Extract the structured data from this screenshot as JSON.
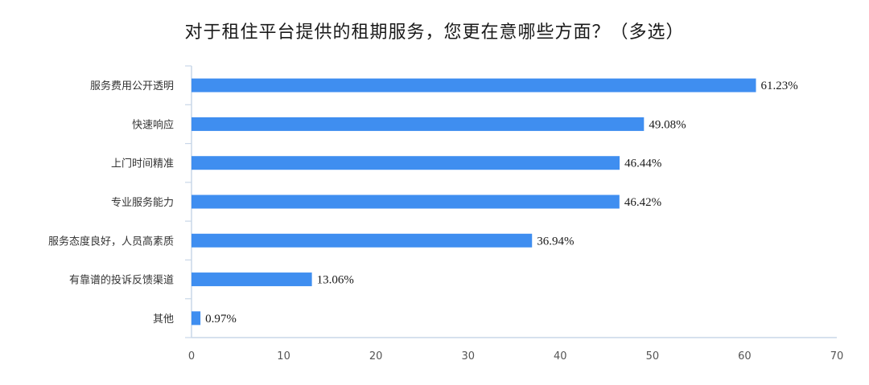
{
  "chart_data": {
    "type": "bar",
    "orientation": "horizontal",
    "title": "对于租住平台提供的租期服务，您更在意哪些方面？（多选）",
    "categories": [
      "服务费用公开透明",
      "快速响应",
      "上门时间精准",
      "专业服务能力",
      "服务态度良好，人员高素质",
      "有靠谱的投诉反馈渠道",
      "其他"
    ],
    "values": [
      61.23,
      49.08,
      46.44,
      46.42,
      36.94,
      13.06,
      0.97
    ],
    "value_labels": [
      "61.23%",
      "49.08%",
      "46.44%",
      "46.42%",
      "36.94%",
      "13.06%",
      "0.97%"
    ],
    "xlim": [
      0,
      70
    ],
    "xticks": [
      "0",
      "10",
      "20",
      "30",
      "40",
      "50",
      "60",
      "70"
    ],
    "xlabel": "",
    "ylabel": "",
    "grid": false,
    "bar_color": "#3f8ef0",
    "axis_color": "#c9d7e8"
  }
}
